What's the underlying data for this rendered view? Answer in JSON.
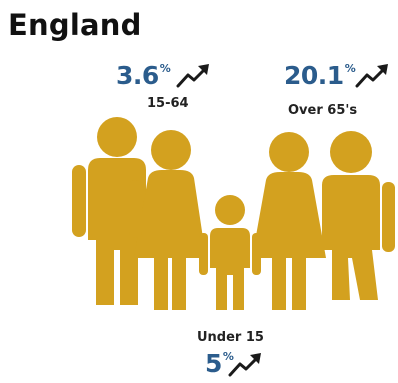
{
  "title": "England",
  "groups": [
    {
      "value": "3.6",
      "unit": "%",
      "label": "15-64",
      "trend_icon": "trend-up-arrow-icon"
    },
    {
      "value": "20.1",
      "unit": "%",
      "label": "Over 65's",
      "trend_icon": "trend-up-arrow-icon"
    },
    {
      "value": "5",
      "unit": "%",
      "label": "Under 15",
      "trend_icon": "trend-up-arrow-icon"
    }
  ],
  "colors": {
    "figure": "#d3a11f",
    "value": "#2b5c8c",
    "arrow": "#1a1a1a",
    "title": "#111111"
  },
  "illustration_icon": "family-silhouette-icon"
}
